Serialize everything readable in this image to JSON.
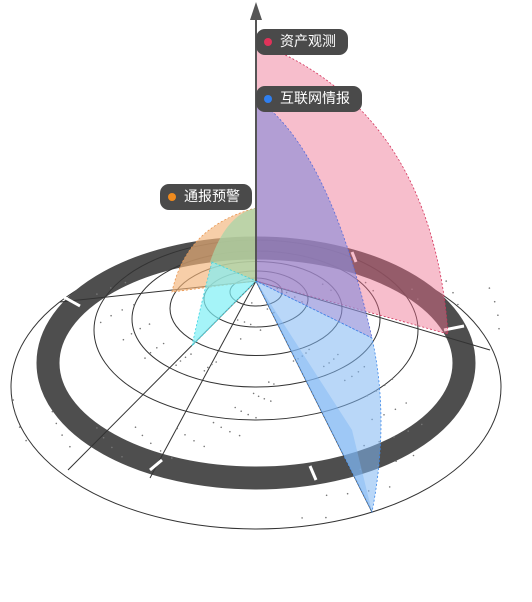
{
  "legend": {
    "assets": {
      "label": "资产观测",
      "color": "#e0335a"
    },
    "internet": {
      "label": "互联网情报",
      "color": "#2f7ff0"
    },
    "alerts": {
      "label": "通报预警",
      "color": "#f08b1e"
    }
  },
  "colors": {
    "ring": "#4e4e4e",
    "axis": "#555555",
    "line": "#333333",
    "pink": "#ee6f8f",
    "purple": "#8d8ed8",
    "blue": "#7fb6f3",
    "orange": "#f3b47a",
    "green": "#a8d4a8",
    "cyan": "#7ff0f5"
  }
}
